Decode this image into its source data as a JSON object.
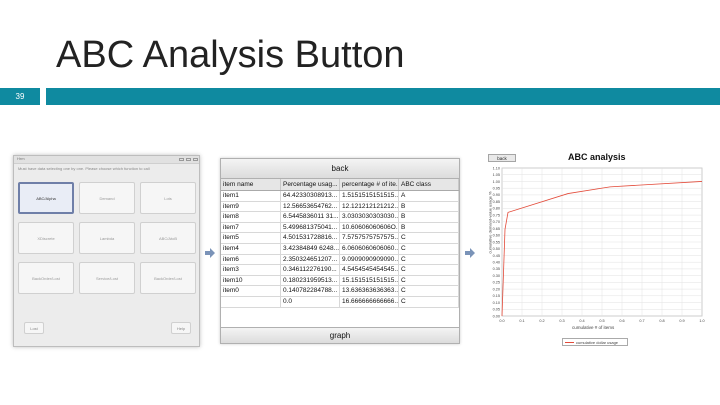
{
  "slide": {
    "title": "ABC Analysis Button",
    "number": "39"
  },
  "button_dialog": {
    "title_text": "Hrm",
    "message": "Must have data selecting one by one. Please choose which function to call",
    "buttons": [
      "ABC/Alpha",
      "Demand",
      "Lots",
      "XDiscrete",
      "Lambda",
      "ABC/AtoB",
      "BackOrder/Lost",
      "Service/Lost",
      "BackOrder/Lost"
    ],
    "bottom_left": "Lost",
    "bottom_right": "Help"
  },
  "table": {
    "back_label": "back",
    "graph_label": "graph",
    "columns": [
      "item name",
      "Percentage usag...",
      "percentage # of ite...",
      "ABC class"
    ],
    "rows": [
      [
        "item1",
        "64.42330308913...",
        "1.5151515151515...",
        "A"
      ],
      [
        "item9",
        "12.56653654762...",
        "12.121212121212...",
        "B"
      ],
      [
        "item8",
        "6.5445836011 31...",
        "3.0303030303030...",
        "B"
      ],
      [
        "item7",
        "5.499681375041...",
        "10.60606060606O...",
        "B"
      ],
      [
        "item5",
        "4.501531728816...",
        "7.5757575757575...",
        "C"
      ],
      [
        "item4",
        "3.42384849 6248...",
        "6.0606060606060...",
        "C"
      ],
      [
        "item6",
        "2.350324651207...",
        "9.0909090909090...",
        "C"
      ],
      [
        "item3",
        "0.346112276190...",
        "4.5454545454545...",
        "C"
      ],
      [
        "item10",
        "0.180231959513...",
        "15.151515151515...",
        "C"
      ],
      [
        "item0",
        "0.140782284788...",
        "13.636363636363...",
        "C"
      ],
      [
        "",
        "0.0",
        "16.666666666666...",
        "C"
      ]
    ]
  },
  "chart_data": {
    "type": "line",
    "title": "ABC analysis",
    "back_label": "back",
    "xlabel": "cumulative # of items",
    "ylabel": "cumulative demand-value usage %",
    "xlim": [
      0,
      1.0
    ],
    "ylim": [
      0,
      1.1
    ],
    "x_ticks": [
      "0.0",
      "0.1",
      "0.2",
      "0.3",
      "0.4",
      "0.5",
      "0.6",
      "0.7",
      "0.8",
      "0.9",
      "1.0"
    ],
    "y_ticks": [
      "0.00",
      "0.05",
      "0.10",
      "0.15",
      "0.20",
      "0.25",
      "0.30",
      "0.35",
      "0.40",
      "0.45",
      "0.50",
      "0.55",
      "0.60",
      "0.65",
      "0.70",
      "0.75",
      "0.80",
      "0.85",
      "0.90",
      "0.95",
      "1.00",
      "1.05",
      "1.10"
    ],
    "series": [
      {
        "name": "cumulative dollar usage",
        "x": [
          0.0,
          0.015,
          0.03,
          0.33,
          0.54,
          1.0
        ],
        "y": [
          0.0,
          0.644,
          0.77,
          0.91,
          0.96,
          1.0
        ]
      }
    ],
    "line_color": "#e34b3a",
    "legend": "bottom-center"
  }
}
